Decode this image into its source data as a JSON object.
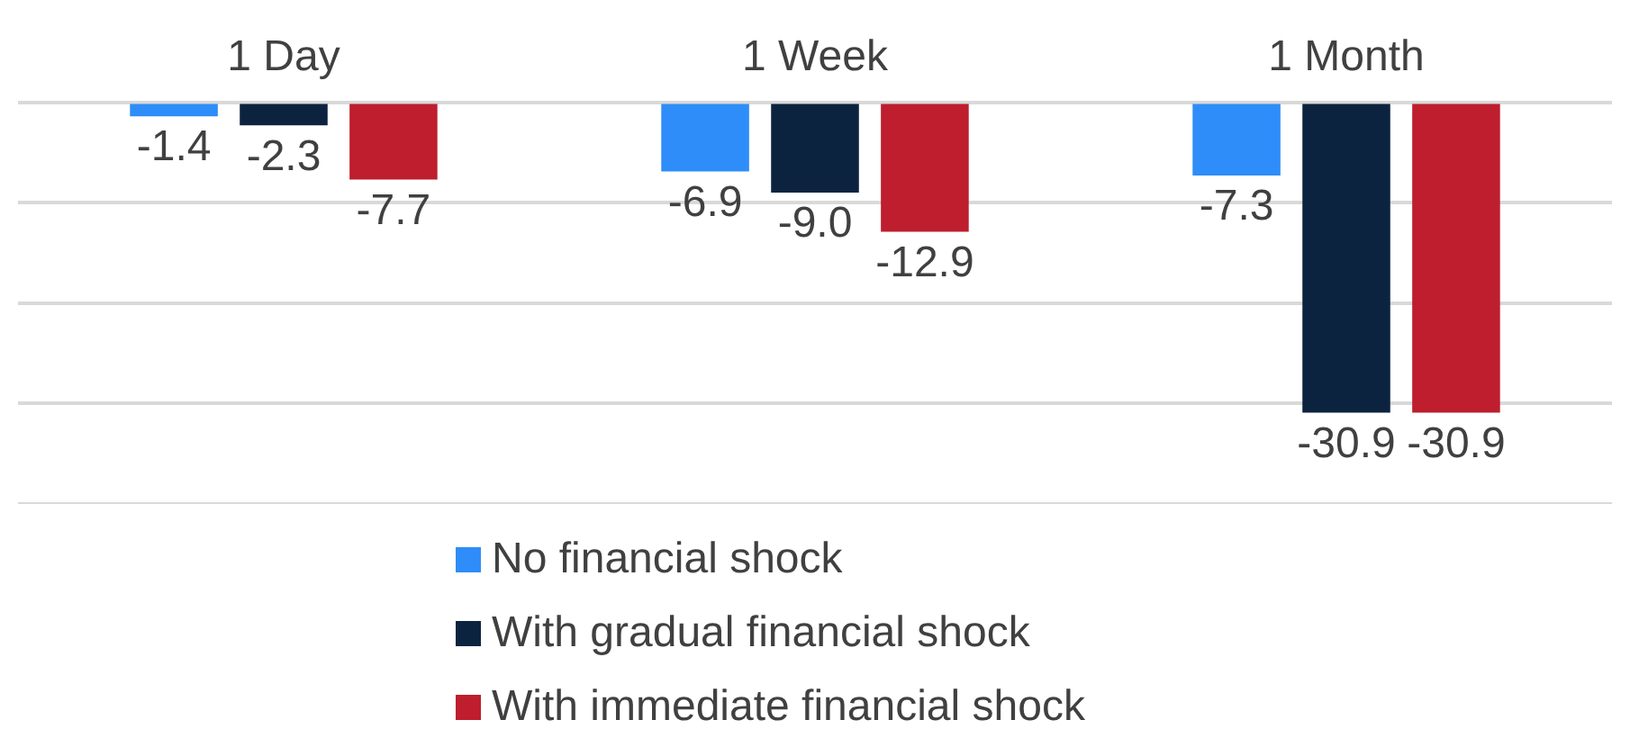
{
  "chart_data": {
    "type": "bar",
    "categories": [
      "1 Day",
      "1 Week",
      "1 Month"
    ],
    "series": [
      {
        "name": "No financial shock",
        "color": "#2e8df8",
        "values": [
          -1.4,
          -6.9,
          -7.3
        ],
        "value_labels": [
          "-1.4",
          "-6.9",
          "-7.3"
        ]
      },
      {
        "name": "With gradual financial shock",
        "color": "#0c2340",
        "values": [
          -2.3,
          -9.0,
          -30.9
        ],
        "value_labels": [
          "-2.3",
          "-9.0",
          "-30.9"
        ]
      },
      {
        "name": "With immediate financial shock",
        "color": "#be1e2d",
        "values": [
          -7.7,
          -12.9,
          -30.9
        ],
        "value_labels": [
          "-7.7",
          "-12.9",
          "-30.9"
        ]
      }
    ],
    "ylim": [
      -40,
      0
    ],
    "yticks": [
      {
        "value": 0,
        "label": null
      },
      {
        "value": -10,
        "label": null
      },
      {
        "value": -20,
        "label": null
      },
      {
        "value": -30,
        "label": null
      },
      {
        "value": -40,
        "label": null
      }
    ],
    "grid": "y",
    "tick_labels": "x",
    "legend": "bottom"
  }
}
